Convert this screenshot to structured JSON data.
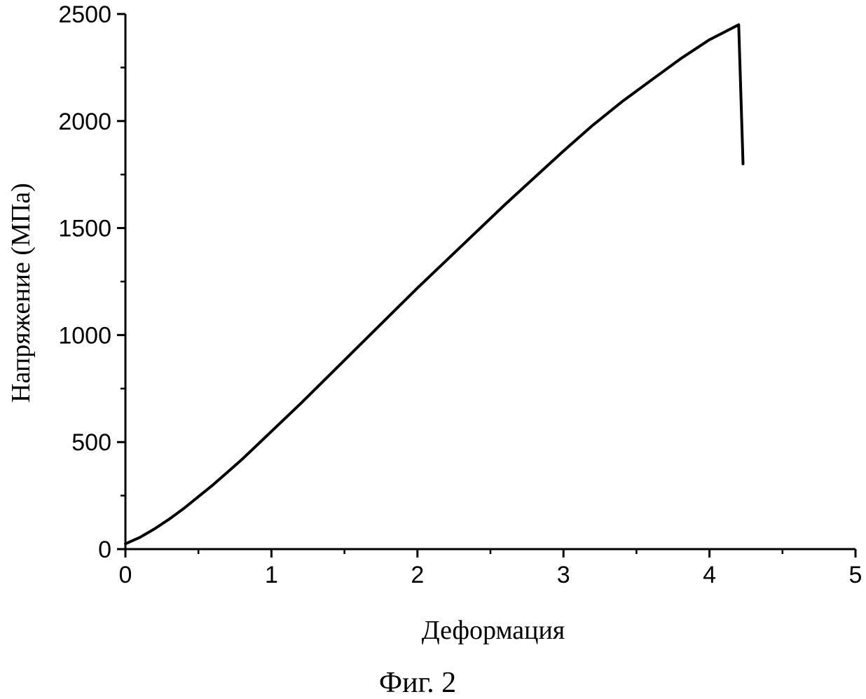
{
  "chart_data": {
    "type": "line",
    "xlabel": "Деформация",
    "ylabel": "Напряжение (МПа)",
    "caption": "Фиг. 2",
    "xlim": [
      0,
      5
    ],
    "ylim": [
      0,
      2500
    ],
    "x_ticks": [
      0,
      1,
      2,
      3,
      4,
      5
    ],
    "y_ticks": [
      0,
      500,
      1000,
      1500,
      2000,
      2500
    ],
    "x_tick_labels": [
      "0",
      "1",
      "2",
      "3",
      "4",
      "5"
    ],
    "y_tick_labels": [
      "0",
      "500",
      "1000",
      "1500",
      "2000",
      "2500"
    ],
    "grid": false,
    "legend": "none",
    "series": [
      {
        "color": "#000000",
        "x": [
          0,
          0.1,
          0.2,
          0.3,
          0.4,
          0.5,
          0.6,
          0.7,
          0.8,
          0.9,
          1.0,
          1.2,
          1.4,
          1.6,
          1.8,
          2.0,
          2.2,
          2.4,
          2.6,
          2.8,
          3.0,
          3.2,
          3.4,
          3.6,
          3.8,
          4.0,
          4.2,
          4.23
        ],
        "y": [
          25,
          55,
          95,
          140,
          190,
          245,
          300,
          360,
          420,
          485,
          550,
          680,
          815,
          950,
          1085,
          1220,
          1350,
          1480,
          1610,
          1735,
          1860,
          1980,
          2090,
          2190,
          2290,
          2380,
          2450,
          1800
        ]
      }
    ]
  }
}
